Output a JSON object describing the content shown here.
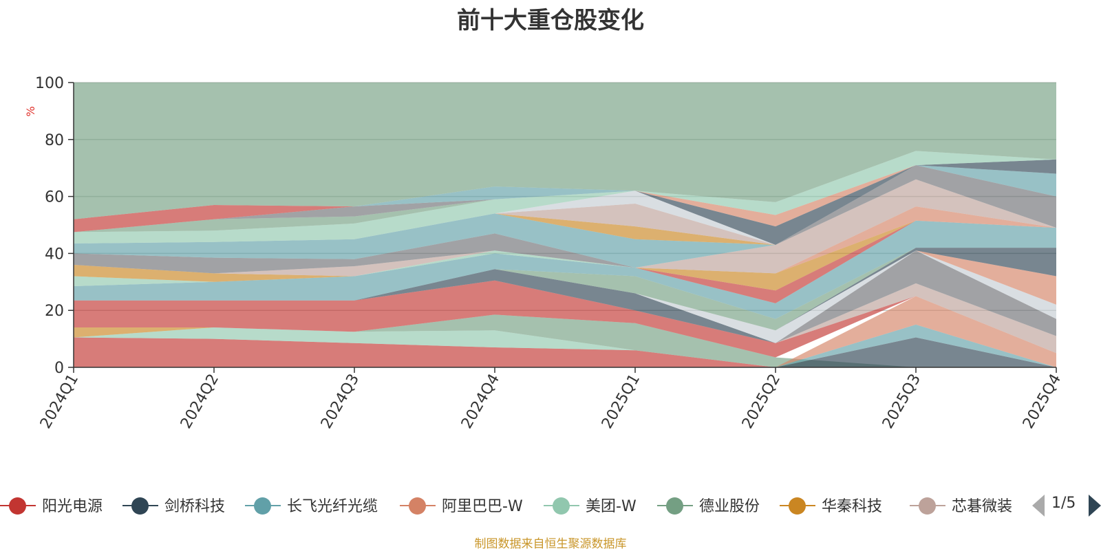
{
  "title": "前十大重仓股变化",
  "footnote": "制图数据来自恒生聚源数据库",
  "pager": {
    "text": "1/5"
  },
  "legend_items": [
    {
      "label": "阳光电源",
      "color": "#c23531"
    },
    {
      "label": "剑桥科技",
      "color": "#2f4554"
    },
    {
      "label": "长飞光纤光缆",
      "color": "#61a0a8"
    },
    {
      "label": "阿里巴巴-W",
      "color": "#d48265"
    },
    {
      "label": "美团-W",
      "color": "#91c7ae"
    },
    {
      "label": "德业股份",
      "color": "#749f83"
    },
    {
      "label": "华秦科技",
      "color": "#ca8622"
    },
    {
      "label": "芯碁微装",
      "color": "#bda29a"
    }
  ],
  "chart_data": {
    "type": "area",
    "title": "前十大重仓股变化",
    "ylabel": "%",
    "ylim": [
      0,
      100
    ],
    "yticks": [
      0,
      20,
      40,
      60,
      80,
      100
    ],
    "grid": true,
    "legend_position": "bottom",
    "x": [
      "2024Q1",
      "2024Q2",
      "2024Q3",
      "2024Q4",
      "2025Q1",
      "2025Q2",
      "2025Q3",
      "2025Q4"
    ],
    "layers": [
      {
        "color": "#c23531",
        "lower": [
          0,
          0,
          0,
          0,
          0,
          0,
          0,
          0
        ],
        "upper": [
          10.5,
          10,
          8.5,
          7,
          6,
          0,
          0,
          0
        ]
      },
      {
        "color": "#91c7ae",
        "lower": [
          10.5,
          10,
          8.5,
          7,
          6,
          0,
          0,
          0
        ],
        "upper": [
          10.5,
          14,
          12.5,
          13,
          6,
          0,
          0,
          0
        ]
      },
      {
        "color": "#749f83",
        "lower": [
          10.5,
          14,
          12.5,
          13,
          6,
          0,
          0,
          0
        ],
        "upper": [
          10.5,
          14,
          12.5,
          18.5,
          15.5,
          3.5,
          0,
          0
        ]
      },
      {
        "color": "#2f4554",
        "lower": [
          0,
          0,
          0,
          0,
          0,
          0,
          0,
          0
        ],
        "upper": [
          0,
          0,
          0,
          0,
          0,
          0,
          10.5,
          0
        ]
      },
      {
        "color": "#61a0a8",
        "lower": [
          0,
          0,
          0,
          0,
          0,
          0,
          10.5,
          0
        ],
        "upper": [
          0,
          0,
          0,
          0,
          0,
          0,
          15,
          0
        ]
      },
      {
        "color": "#d48265",
        "lower": [
          0,
          0,
          0,
          0,
          0,
          0,
          15,
          0
        ],
        "upper": [
          0,
          0,
          0,
          0,
          0,
          0,
          25,
          5
        ]
      },
      {
        "color": "#ca8622",
        "lower": [
          10.5,
          14,
          12.5,
          18.5,
          15.5,
          3.5,
          25,
          5
        ],
        "upper": [
          14,
          14,
          12.5,
          18.5,
          15.5,
          3.5,
          25,
          5
        ]
      },
      {
        "color": "#c23531",
        "lower": [
          14,
          14,
          12.5,
          18.5,
          15.5,
          3.5,
          25,
          5
        ],
        "upper": [
          23.5,
          23.5,
          23.5,
          30.5,
          20,
          8.5,
          25,
          5
        ]
      },
      {
        "color": "#2f4554",
        "lower": [
          23.5,
          23.5,
          23.5,
          30.5,
          20,
          8.5,
          25,
          5
        ],
        "upper": [
          23.5,
          23.5,
          23.5,
          34.5,
          26,
          8.5,
          25,
          5
        ]
      },
      {
        "color": "#bda29a",
        "lower": [
          23.5,
          23.5,
          23.5,
          34.5,
          26,
          8.5,
          25,
          5
        ],
        "upper": [
          23.5,
          23.5,
          23.5,
          34.5,
          26,
          8.5,
          29.5,
          11
        ]
      },
      {
        "color": "#6e7074",
        "lower": [
          23.5,
          23.5,
          23.5,
          34.5,
          26,
          8.5,
          29.5,
          11
        ],
        "upper": [
          23.5,
          23.5,
          23.5,
          34.5,
          26,
          8.5,
          41,
          17
        ]
      },
      {
        "color": "#c4ccd3",
        "lower": [
          23.5,
          23.5,
          23.5,
          34.5,
          26,
          8.5,
          41,
          17
        ],
        "upper": [
          23.5,
          23.5,
          23.5,
          34.5,
          26,
          13,
          41,
          22
        ]
      },
      {
        "color": "#d48265",
        "lower": [
          23.5,
          23.5,
          23.5,
          34.5,
          26,
          13,
          41,
          22
        ],
        "upper": [
          23.5,
          23.5,
          23.5,
          34.5,
          26,
          13,
          41,
          32
        ]
      },
      {
        "color": "#2f4554",
        "lower": [
          23.5,
          23.5,
          23.5,
          34.5,
          26,
          13,
          41,
          32
        ],
        "upper": [
          23.5,
          23.5,
          23.5,
          34.5,
          26,
          13,
          42,
          42
        ]
      },
      {
        "color": "#749f83",
        "lower": [
          23.5,
          23.5,
          23.5,
          34.5,
          26,
          13,
          42,
          42
        ],
        "upper": [
          23.5,
          23.5,
          23.5,
          34.5,
          32,
          17,
          42,
          42
        ]
      },
      {
        "color": "#61a0a8",
        "lower": [
          23.5,
          23.5,
          23.5,
          34.5,
          32,
          17,
          42,
          42
        ],
        "upper": [
          28.5,
          30,
          32,
          40,
          35,
          22.5,
          51.5,
          49
        ]
      },
      {
        "color": "#c23531",
        "lower": [
          28.5,
          30,
          32,
          40,
          35,
          22.5,
          51.5,
          49
        ],
        "upper": [
          28.5,
          30,
          32,
          40,
          35,
          27,
          51.5,
          49
        ]
      },
      {
        "color": "#91c7ae",
        "lower": [
          28.5,
          30,
          32,
          40,
          35,
          27,
          51.5,
          49
        ],
        "upper": [
          32,
          30,
          32,
          41,
          35,
          27,
          51.5,
          49
        ]
      },
      {
        "color": "#ca8622",
        "lower": [
          32,
          30,
          32,
          41,
          35,
          27,
          51.5,
          49
        ],
        "upper": [
          36,
          33,
          32,
          41,
          35,
          33,
          51.5,
          49
        ]
      },
      {
        "color": "#d48265",
        "lower": [
          36,
          33,
          32,
          41,
          35,
          33,
          51.5,
          49
        ],
        "upper": [
          36,
          33,
          32,
          41,
          35,
          33,
          56.5,
          49
        ]
      },
      {
        "color": "#bda29a",
        "lower": [
          36,
          33,
          32,
          41,
          35,
          33,
          56.5,
          49
        ],
        "upper": [
          36,
          33,
          35.5,
          41,
          35,
          43,
          66,
          49
        ]
      },
      {
        "color": "#6e7074",
        "lower": [
          36,
          33,
          35.5,
          41,
          35,
          43,
          66,
          49
        ],
        "upper": [
          40,
          38.5,
          38,
          47,
          35,
          43,
          71,
          60
        ]
      },
      {
        "color": "#c23531",
        "lower": [
          40,
          38.5,
          38,
          47,
          35,
          43,
          71,
          60
        ],
        "upper": [
          40,
          38.5,
          38,
          47,
          35,
          43,
          71,
          60
        ]
      },
      {
        "color": "#61a0a8",
        "lower": [
          40,
          38.5,
          38,
          47,
          35,
          43,
          71,
          60
        ],
        "upper": [
          43.5,
          44,
          45,
          54,
          45,
          43,
          71,
          68
        ]
      },
      {
        "color": "#ca8622",
        "lower": [
          43.5,
          44,
          45,
          54,
          45,
          43,
          71,
          68
        ],
        "upper": [
          43.5,
          44,
          45,
          54,
          49.5,
          43,
          71,
          68
        ]
      },
      {
        "color": "#bda29a",
        "lower": [
          43.5,
          44,
          45,
          54,
          49.5,
          43,
          71,
          68
        ],
        "upper": [
          43.5,
          44,
          45,
          54,
          57.5,
          43,
          71,
          68
        ]
      },
      {
        "color": "#c4ccd3",
        "lower": [
          43.5,
          44,
          45,
          54,
          57.5,
          43,
          71,
          68
        ],
        "upper": [
          43.5,
          44,
          45,
          54,
          62,
          43,
          71,
          68
        ]
      },
      {
        "color": "#2f4554",
        "lower": [
          43.5,
          44,
          45,
          54,
          62,
          43,
          71,
          68
        ],
        "upper": [
          43.5,
          44,
          45,
          54,
          62,
          49.5,
          71,
          73
        ]
      },
      {
        "color": "#d48265",
        "lower": [
          43.5,
          44,
          45,
          54,
          62,
          49.5,
          71,
          73
        ],
        "upper": [
          43.5,
          44,
          45,
          54,
          62,
          53.5,
          71,
          73
        ]
      },
      {
        "color": "#91c7ae",
        "lower": [
          43.5,
          44,
          45,
          54,
          62,
          53.5,
          71,
          73
        ],
        "upper": [
          47.5,
          48,
          50.5,
          59,
          62,
          58,
          76,
          73
        ]
      },
      {
        "color": "#749f83",
        "lower": [
          47.5,
          48,
          50.5,
          59,
          62,
          58,
          76,
          73
        ],
        "upper": [
          47.5,
          52,
          53,
          59,
          62,
          58,
          76,
          73
        ]
      },
      {
        "color": "#6e7074",
        "lower": [
          47.5,
          52,
          53,
          59,
          62,
          58,
          76,
          73
        ],
        "upper": [
          47.5,
          52,
          56.5,
          59,
          62,
          58,
          76,
          73
        ]
      },
      {
        "color": "#c23531",
        "lower": [
          47.5,
          52,
          56.5,
          59,
          62,
          58,
          76,
          73
        ],
        "upper": [
          52,
          57,
          56.5,
          59,
          62,
          58,
          76,
          73
        ]
      },
      {
        "color": "#61a0a8",
        "lower": [
          52,
          57,
          56.5,
          59,
          62,
          58,
          76,
          73
        ],
        "upper": [
          52,
          57,
          56.5,
          63.5,
          62,
          58,
          76,
          73
        ]
      },
      {
        "color": "#749f83",
        "lower": [
          52,
          57,
          56.5,
          63.5,
          62,
          58,
          76,
          73
        ],
        "upper": [
          100,
          100,
          100,
          100,
          100,
          100,
          100,
          100
        ]
      }
    ]
  }
}
